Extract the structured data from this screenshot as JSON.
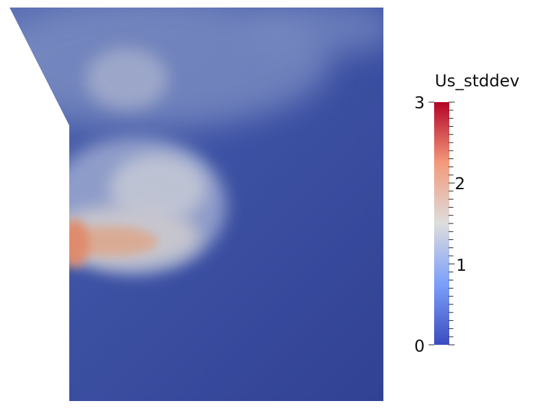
{
  "field_name": "Us_stddev",
  "colorbar": {
    "title": "Us_stddev",
    "range": [
      0,
      3
    ],
    "labels": [
      "3",
      "2",
      "1",
      "0"
    ],
    "colormap": "cool-to-warm",
    "colors": [
      "#3b4cc0",
      "#8db0fe",
      "#dddddd",
      "#f49a7b",
      "#b40426"
    ]
  },
  "field": {
    "background_color": "#34469a",
    "hotspot_color": "#e29274",
    "mid_color": "#c8cbd6"
  }
}
